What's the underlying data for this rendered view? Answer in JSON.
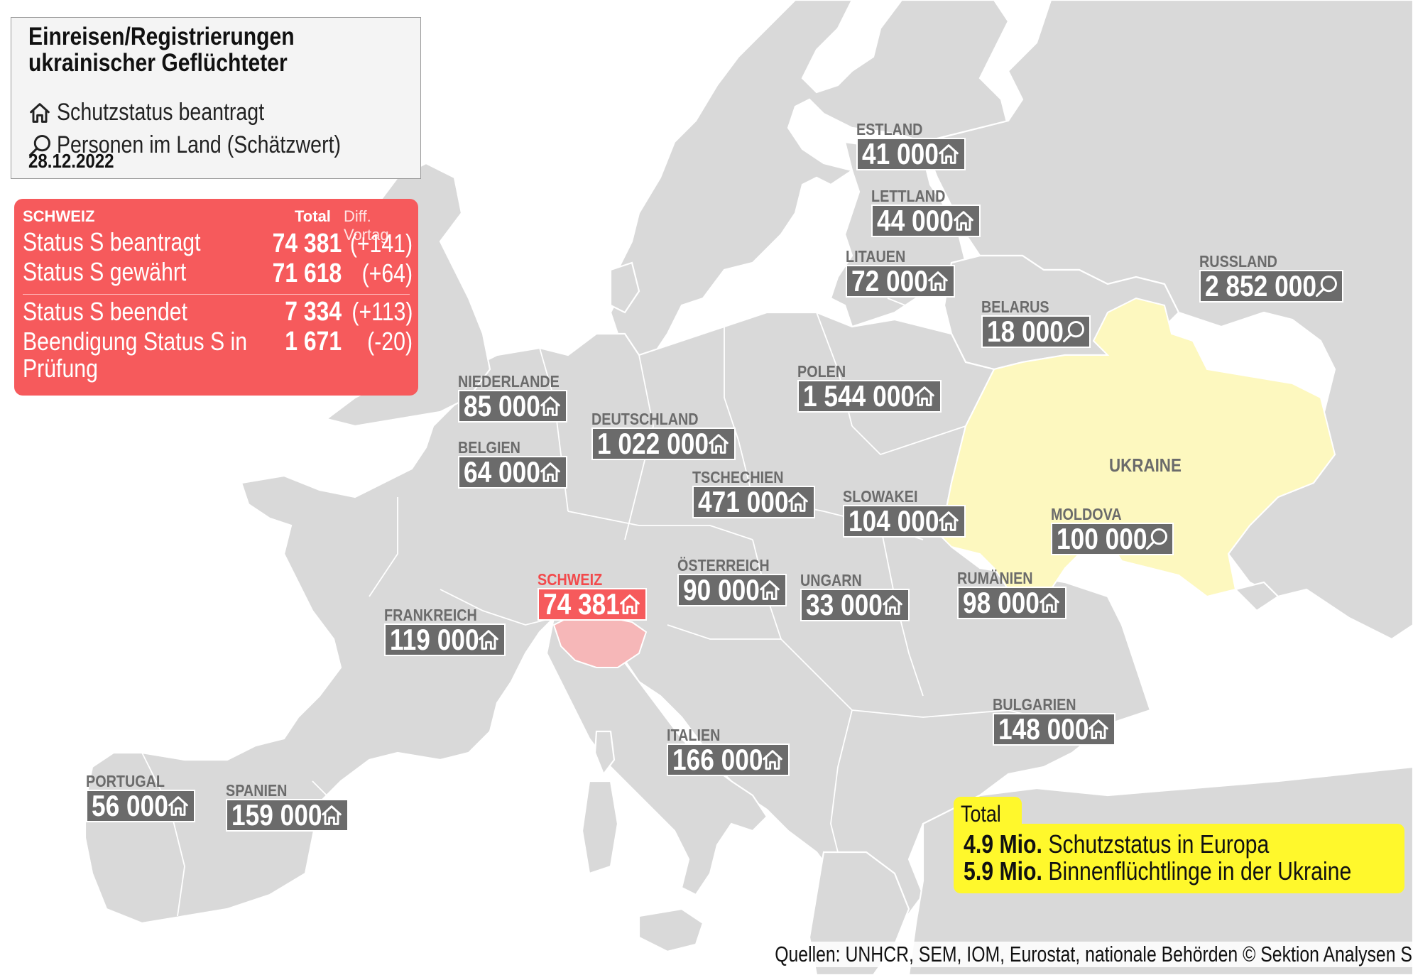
{
  "legend": {
    "title_line1": "Einreisen/Registrierungen",
    "title_line2": "ukrainischer Geflüchteter",
    "item_protection": "Schutzstatus beantragt",
    "item_estimate": "Personen im Land (Schätzwert)",
    "date": "28.12.2022",
    "icon_protection": "house-icon",
    "icon_estimate": "magnifier-icon"
  },
  "switzerland_box": {
    "header": "SCHWEIZ",
    "col_total": "Total",
    "col_diff": "Diff. Vortag",
    "rows": [
      {
        "label": "Status S beantragt",
        "total": "74 381",
        "diff": "(+141)"
      },
      {
        "label": "Status S gewährt",
        "total": "71 618",
        "diff": "(+64)"
      },
      {
        "label": "Status S beendet",
        "total": "7 334",
        "diff": "(+113)"
      },
      {
        "label": "Beendigung Status S in",
        "label2": "Prüfung",
        "total": "1 671",
        "diff": "(-20)"
      }
    ]
  },
  "countries": [
    {
      "name": "ESTLAND",
      "value": "41 000",
      "icon": "house-icon"
    },
    {
      "name": "LETTLAND",
      "value": "44 000",
      "icon": "house-icon"
    },
    {
      "name": "LITAUEN",
      "value": "72 000",
      "icon": "house-icon"
    },
    {
      "name": "RUSSLAND",
      "value": "2 852 000",
      "icon": "magnifier-icon"
    },
    {
      "name": "BELARUS",
      "value": "18 000",
      "icon": "magnifier-icon"
    },
    {
      "name": "POLEN",
      "value": "1 544 000",
      "icon": "house-icon"
    },
    {
      "name": "NIEDERLANDE",
      "value": "85 000",
      "icon": "house-icon"
    },
    {
      "name": "DEUTSCHLAND",
      "value": "1 022 000",
      "icon": "house-icon"
    },
    {
      "name": "BELGIEN",
      "value": "64 000",
      "icon": "house-icon"
    },
    {
      "name": "TSCHECHIEN",
      "value": "471 000",
      "icon": "house-icon"
    },
    {
      "name": "SLOWAKEI",
      "value": "104 000",
      "icon": "house-icon"
    },
    {
      "name": "MOLDOVA",
      "value": "100 000",
      "icon": "magnifier-icon"
    },
    {
      "name": "SCHWEIZ",
      "value": "74 381",
      "icon": "house-icon"
    },
    {
      "name": "ÖSTERREICH",
      "value": "90 000",
      "icon": "house-icon"
    },
    {
      "name": "UNGARN",
      "value": "33 000",
      "icon": "house-icon"
    },
    {
      "name": "RUMÄNIEN",
      "value": "98 000",
      "icon": "house-icon"
    },
    {
      "name": "FRANKREICH",
      "value": "119 000",
      "icon": "house-icon"
    },
    {
      "name": "BULGARIEN",
      "value": "148 000",
      "icon": "house-icon"
    },
    {
      "name": "ITALIEN",
      "value": "166 000",
      "icon": "house-icon"
    },
    {
      "name": "PORTUGAL",
      "value": "56 000",
      "icon": "house-icon"
    },
    {
      "name": "SPANIEN",
      "value": "159 000",
      "icon": "house-icon"
    }
  ],
  "ukraine_label": "UKRAINE",
  "total_box": {
    "tab": "Total",
    "line1_value": "4.9 Mio.",
    "line1_text": "Schutzstatus in Europa",
    "line2_value": "5.9 Mio.",
    "line2_text": "Binnenflüchtlinge in der Ukraine"
  },
  "source": "Quellen: UNHCR, SEM, IOM, Eurostat, nationale Behörden   © Sektion Analysen SEM",
  "colors": {
    "land": "#d9d9d9",
    "label_box": "#6b6b6b",
    "switzerland": "#f65a5c",
    "ukraine": "#fdf8bf",
    "total_box": "#fff82c"
  }
}
